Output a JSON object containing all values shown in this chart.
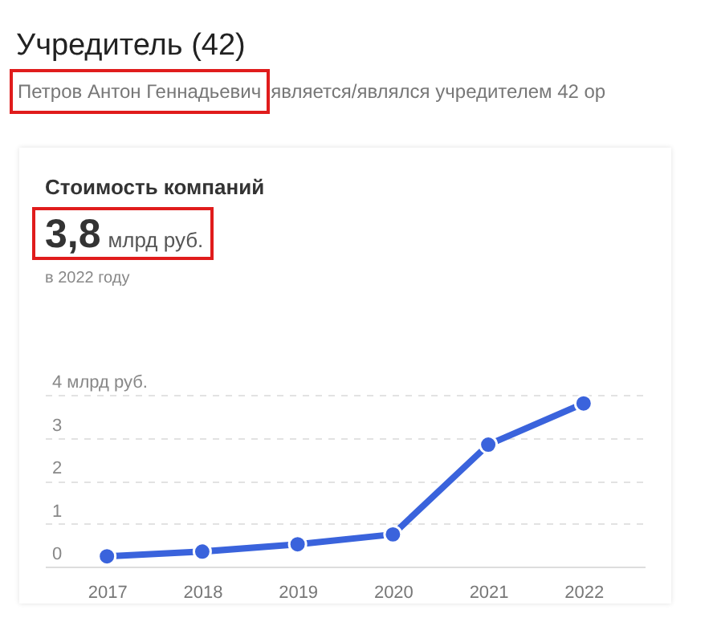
{
  "chart_data": {
    "type": "line",
    "title": "Стоимость компаний",
    "annotations": [
      "Учредитель (42)",
      "Петров Антон Геннадьевич",
      "является/являлся учредителем 42 ор",
      "3,8",
      "млрд руб.",
      "в 2022 году"
    ],
    "categories": [
      "2017",
      "2018",
      "2019",
      "2020",
      "2021",
      "2022"
    ],
    "series": [
      {
        "color": "#3a63dc",
        "values": [
          0.24,
          0.35,
          0.52,
          0.75,
          2.84,
          3.8
        ]
      }
    ],
    "ylim": [
      0,
      4
    ],
    "yticks": [
      0,
      1,
      2,
      3,
      {
        "value": 4,
        "label": "4 млрд руб."
      }
    ],
    "grid": "y",
    "marker": "circle",
    "line_style": "solid",
    "legend": false
  }
}
